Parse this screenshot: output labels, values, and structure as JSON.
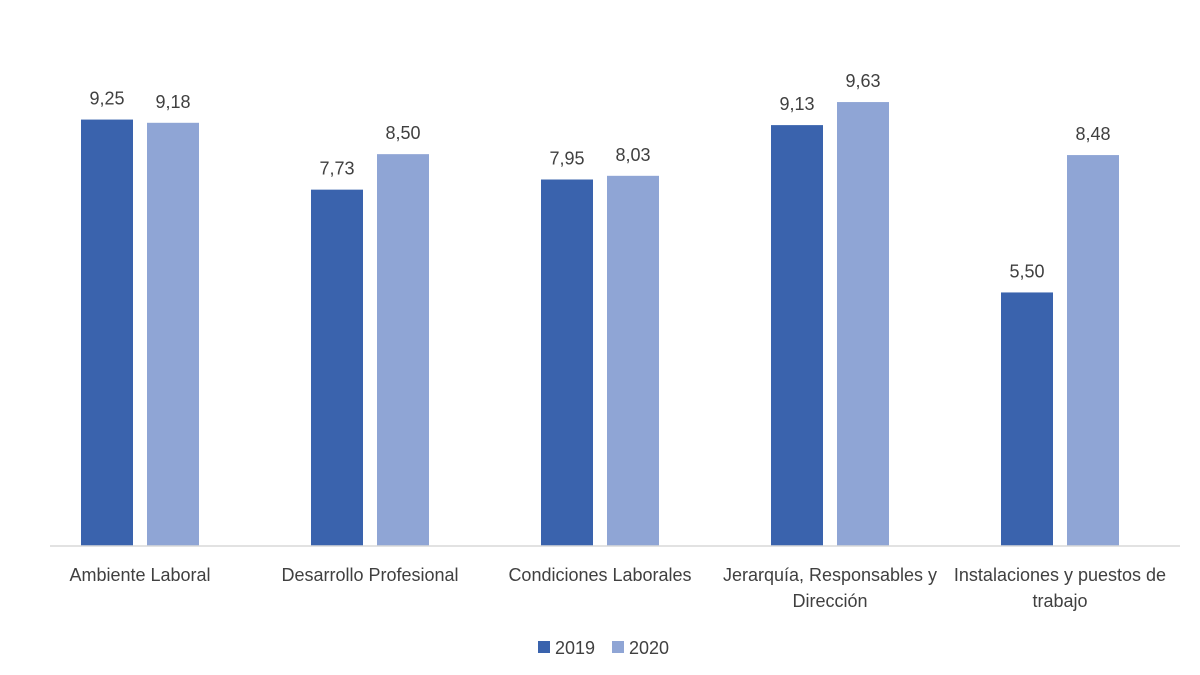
{
  "chart_data": {
    "type": "bar",
    "categories": [
      [
        "Ambiente Laboral"
      ],
      [
        "Desarrollo Profesional"
      ],
      [
        "Condiciones Laborales"
      ],
      [
        "Jerarquía, Responsables y",
        "Dirección"
      ],
      [
        "Instalaciones y puestos de",
        "trabajo"
      ]
    ],
    "series": [
      {
        "name": "2019",
        "color": "#3A63AD",
        "values": [
          9.25,
          7.73,
          7.95,
          9.13,
          5.5
        ],
        "labels": [
          "9,25",
          "7,73",
          "7,95",
          "9,13",
          "5,50"
        ]
      },
      {
        "name": "2020",
        "color": "#8FA5D5",
        "values": [
          9.18,
          8.5,
          8.03,
          9.63,
          8.48
        ],
        "labels": [
          "9,18",
          "8,50",
          "8,03",
          "9,63",
          "8,48"
        ]
      }
    ],
    "ylim": [
      0,
      10
    ],
    "grid": false,
    "legend": "bottom-center",
    "xlabel": "",
    "ylabel": "",
    "title": ""
  }
}
